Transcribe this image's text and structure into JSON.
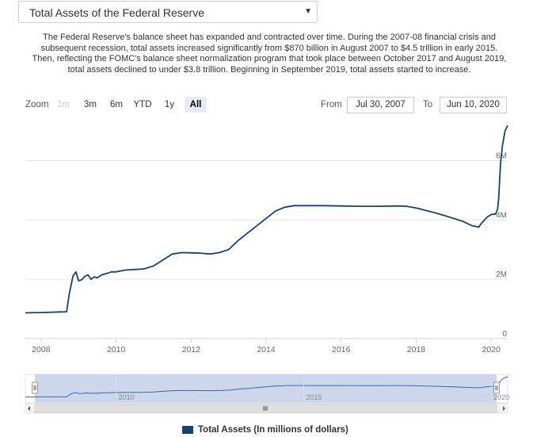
{
  "dropdown": {
    "selected": "Total Assets of the Federal Reserve"
  },
  "description": "The Federal Reserve's balance sheet has expanded and contracted over time. During the 2007-08 financial crisis and subsequent recession, total assets increased significantly from $870 billion in August 2007 to $4.5 trillion in early 2015. Then, reflecting the FOMC's balance sheet normalization program that took place between October 2017 and August 2019, total assets declined to under $3.8 trillion. Beginning in September 2019, total assets started to increase.",
  "zoom": {
    "label": "Zoom",
    "buttons": [
      {
        "label": "1m",
        "state": "disabled"
      },
      {
        "label": "3m",
        "state": "normal"
      },
      {
        "label": "6m",
        "state": "normal"
      },
      {
        "label": "YTD",
        "state": "normal"
      },
      {
        "label": "1y",
        "state": "normal"
      },
      {
        "label": "All",
        "state": "active"
      }
    ]
  },
  "range": {
    "from_label": "From",
    "from": "Jul 30, 2007",
    "to_label": "To",
    "to": "Jun 10, 2020"
  },
  "colors": {
    "series": "#14427a",
    "navigator_fill": "#c7d3ea",
    "grid": "#e6e6e6"
  },
  "chart_data": {
    "type": "line",
    "title": "",
    "xlabel": "",
    "ylabel": "",
    "xlim": [
      2007.58,
      2020.44
    ],
    "ylim": [
      0,
      7000000
    ],
    "y_ticks": [
      0,
      2000000,
      4000000,
      6000000
    ],
    "y_tick_labels": [
      "0",
      "2M",
      "4M",
      "6M"
    ],
    "x_ticks": [
      2008,
      2010,
      2012,
      2014,
      2016,
      2018,
      2020
    ],
    "x_tick_labels": [
      "2008",
      "2010",
      "2012",
      "2014",
      "2016",
      "2018",
      "2020"
    ],
    "grid": true,
    "navigator_x_tick_labels": [
      "2010",
      "2015",
      "2020"
    ],
    "series": [
      {
        "name": "Total Assets (In millions of dollars)",
        "x": [
          2007.58,
          2008.0,
          2008.5,
          2008.68,
          2008.75,
          2008.85,
          2008.93,
          2009.0,
          2009.08,
          2009.17,
          2009.25,
          2009.33,
          2009.42,
          2009.5,
          2009.62,
          2009.75,
          2009.88,
          2010.0,
          2010.25,
          2010.5,
          2010.75,
          2011.0,
          2011.25,
          2011.5,
          2011.75,
          2012.0,
          2012.25,
          2012.5,
          2012.75,
          2013.0,
          2013.25,
          2013.5,
          2013.75,
          2014.0,
          2014.25,
          2014.5,
          2014.75,
          2015.0,
          2015.5,
          2016.0,
          2016.5,
          2017.0,
          2017.5,
          2017.75,
          2018.0,
          2018.25,
          2018.5,
          2018.75,
          2019.0,
          2019.25,
          2019.5,
          2019.67,
          2019.75,
          2019.9,
          2020.0,
          2020.12,
          2020.17,
          2020.2,
          2020.25,
          2020.3,
          2020.37,
          2020.44
        ],
        "y": [
          870000,
          880000,
          900000,
          905000,
          1500000,
          2100000,
          2250000,
          1950000,
          1980000,
          2100000,
          2150000,
          2000000,
          2080000,
          2050000,
          2150000,
          2200000,
          2250000,
          2250000,
          2310000,
          2330000,
          2350000,
          2450000,
          2650000,
          2850000,
          2900000,
          2890000,
          2880000,
          2850000,
          2900000,
          3000000,
          3300000,
          3550000,
          3800000,
          4050000,
          4300000,
          4430000,
          4480000,
          4480000,
          4480000,
          4470000,
          4460000,
          4460000,
          4470000,
          4460000,
          4400000,
          4320000,
          4240000,
          4150000,
          4050000,
          3950000,
          3800000,
          3760000,
          3900000,
          4100000,
          4180000,
          4200000,
          4350000,
          4700000,
          5900000,
          6500000,
          7000000,
          7180000
        ]
      }
    ]
  }
}
